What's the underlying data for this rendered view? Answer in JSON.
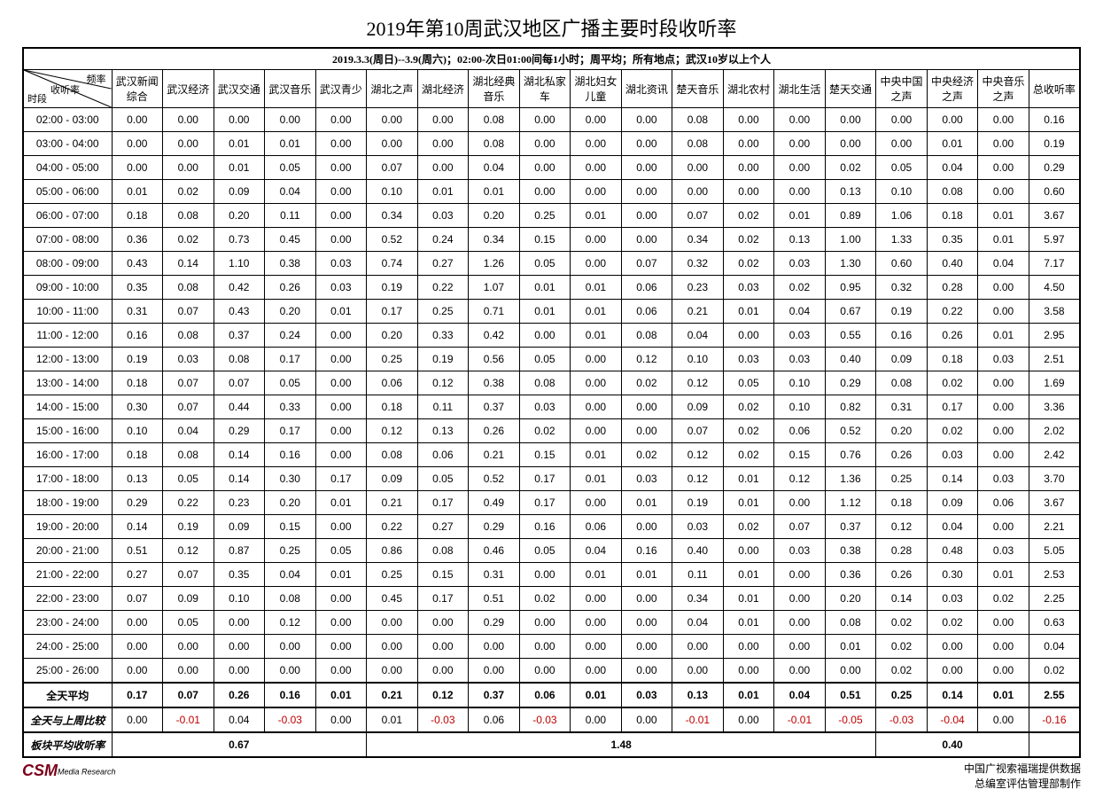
{
  "title": "2019年第10周武汉地区广播主要时段收听率",
  "subtitle": "2019.3.3(周日)--3.9(周六)；02:00-次日01:00间每1小时；周平均；所有地点；武汉10岁以上个人",
  "diag": {
    "top": "频率",
    "mid": "收听率",
    "bot": "时段"
  },
  "columns": [
    "武汉新闻综合",
    "武汉经济",
    "武汉交通",
    "武汉音乐",
    "武汉青少",
    "湖北之声",
    "湖北经济",
    "湖北经典音乐",
    "湖北私家车",
    "湖北妇女儿童",
    "湖北资讯",
    "楚天音乐",
    "湖北农村",
    "湖北生活",
    "楚天交通",
    "中央中国之声",
    "中央经济之声",
    "中央音乐之声",
    "总收听率"
  ],
  "rows": [
    {
      "t": "02:00 - 03:00",
      "v": [
        "0.00",
        "0.00",
        "0.00",
        "0.00",
        "0.00",
        "0.00",
        "0.00",
        "0.08",
        "0.00",
        "0.00",
        "0.00",
        "0.08",
        "0.00",
        "0.00",
        "0.00",
        "0.00",
        "0.00",
        "0.00",
        "0.16"
      ]
    },
    {
      "t": "03:00 - 04:00",
      "v": [
        "0.00",
        "0.00",
        "0.01",
        "0.01",
        "0.00",
        "0.00",
        "0.00",
        "0.08",
        "0.00",
        "0.00",
        "0.00",
        "0.08",
        "0.00",
        "0.00",
        "0.00",
        "0.00",
        "0.01",
        "0.00",
        "0.19"
      ]
    },
    {
      "t": "04:00 - 05:00",
      "v": [
        "0.00",
        "0.00",
        "0.01",
        "0.05",
        "0.00",
        "0.07",
        "0.00",
        "0.04",
        "0.00",
        "0.00",
        "0.00",
        "0.00",
        "0.00",
        "0.00",
        "0.02",
        "0.05",
        "0.04",
        "0.00",
        "0.29"
      ]
    },
    {
      "t": "05:00 - 06:00",
      "v": [
        "0.01",
        "0.02",
        "0.09",
        "0.04",
        "0.00",
        "0.10",
        "0.01",
        "0.01",
        "0.00",
        "0.00",
        "0.00",
        "0.00",
        "0.00",
        "0.00",
        "0.13",
        "0.10",
        "0.08",
        "0.00",
        "0.60"
      ]
    },
    {
      "t": "06:00 - 07:00",
      "v": [
        "0.18",
        "0.08",
        "0.20",
        "0.11",
        "0.00",
        "0.34",
        "0.03",
        "0.20",
        "0.25",
        "0.01",
        "0.00",
        "0.07",
        "0.02",
        "0.01",
        "0.89",
        "1.06",
        "0.18",
        "0.01",
        "3.67"
      ]
    },
    {
      "t": "07:00 - 08:00",
      "v": [
        "0.36",
        "0.02",
        "0.73",
        "0.45",
        "0.00",
        "0.52",
        "0.24",
        "0.34",
        "0.15",
        "0.00",
        "0.00",
        "0.34",
        "0.02",
        "0.13",
        "1.00",
        "1.33",
        "0.35",
        "0.01",
        "5.97"
      ]
    },
    {
      "t": "08:00 - 09:00",
      "v": [
        "0.43",
        "0.14",
        "1.10",
        "0.38",
        "0.03",
        "0.74",
        "0.27",
        "1.26",
        "0.05",
        "0.00",
        "0.07",
        "0.32",
        "0.02",
        "0.03",
        "1.30",
        "0.60",
        "0.40",
        "0.04",
        "7.17"
      ]
    },
    {
      "t": "09:00 - 10:00",
      "v": [
        "0.35",
        "0.08",
        "0.42",
        "0.26",
        "0.03",
        "0.19",
        "0.22",
        "1.07",
        "0.01",
        "0.01",
        "0.06",
        "0.23",
        "0.03",
        "0.02",
        "0.95",
        "0.32",
        "0.28",
        "0.00",
        "4.50"
      ]
    },
    {
      "t": "10:00 - 11:00",
      "v": [
        "0.31",
        "0.07",
        "0.43",
        "0.20",
        "0.01",
        "0.17",
        "0.25",
        "0.71",
        "0.01",
        "0.01",
        "0.06",
        "0.21",
        "0.01",
        "0.04",
        "0.67",
        "0.19",
        "0.22",
        "0.00",
        "3.58"
      ]
    },
    {
      "t": "11:00 - 12:00",
      "v": [
        "0.16",
        "0.08",
        "0.37",
        "0.24",
        "0.00",
        "0.20",
        "0.33",
        "0.42",
        "0.00",
        "0.01",
        "0.08",
        "0.04",
        "0.00",
        "0.03",
        "0.55",
        "0.16",
        "0.26",
        "0.01",
        "2.95"
      ]
    },
    {
      "t": "12:00 - 13:00",
      "v": [
        "0.19",
        "0.03",
        "0.08",
        "0.17",
        "0.00",
        "0.25",
        "0.19",
        "0.56",
        "0.05",
        "0.00",
        "0.12",
        "0.10",
        "0.03",
        "0.03",
        "0.40",
        "0.09",
        "0.18",
        "0.03",
        "2.51"
      ]
    },
    {
      "t": "13:00 - 14:00",
      "v": [
        "0.18",
        "0.07",
        "0.07",
        "0.05",
        "0.00",
        "0.06",
        "0.12",
        "0.38",
        "0.08",
        "0.00",
        "0.02",
        "0.12",
        "0.05",
        "0.10",
        "0.29",
        "0.08",
        "0.02",
        "0.00",
        "1.69"
      ]
    },
    {
      "t": "14:00 - 15:00",
      "v": [
        "0.30",
        "0.07",
        "0.44",
        "0.33",
        "0.00",
        "0.18",
        "0.11",
        "0.37",
        "0.03",
        "0.00",
        "0.00",
        "0.09",
        "0.02",
        "0.10",
        "0.82",
        "0.31",
        "0.17",
        "0.00",
        "3.36"
      ]
    },
    {
      "t": "15:00 - 16:00",
      "v": [
        "0.10",
        "0.04",
        "0.29",
        "0.17",
        "0.00",
        "0.12",
        "0.13",
        "0.26",
        "0.02",
        "0.00",
        "0.00",
        "0.07",
        "0.02",
        "0.06",
        "0.52",
        "0.20",
        "0.02",
        "0.00",
        "2.02"
      ]
    },
    {
      "t": "16:00 - 17:00",
      "v": [
        "0.18",
        "0.08",
        "0.14",
        "0.16",
        "0.00",
        "0.08",
        "0.06",
        "0.21",
        "0.15",
        "0.01",
        "0.02",
        "0.12",
        "0.02",
        "0.15",
        "0.76",
        "0.26",
        "0.03",
        "0.00",
        "2.42"
      ]
    },
    {
      "t": "17:00 - 18:00",
      "v": [
        "0.13",
        "0.05",
        "0.14",
        "0.30",
        "0.17",
        "0.09",
        "0.05",
        "0.52",
        "0.17",
        "0.01",
        "0.03",
        "0.12",
        "0.01",
        "0.12",
        "1.36",
        "0.25",
        "0.14",
        "0.03",
        "3.70"
      ]
    },
    {
      "t": "18:00 - 19:00",
      "v": [
        "0.29",
        "0.22",
        "0.23",
        "0.20",
        "0.01",
        "0.21",
        "0.17",
        "0.49",
        "0.17",
        "0.00",
        "0.01",
        "0.19",
        "0.01",
        "0.00",
        "1.12",
        "0.18",
        "0.09",
        "0.06",
        "3.67"
      ]
    },
    {
      "t": "19:00 - 20:00",
      "v": [
        "0.14",
        "0.19",
        "0.09",
        "0.15",
        "0.00",
        "0.22",
        "0.27",
        "0.29",
        "0.16",
        "0.06",
        "0.00",
        "0.03",
        "0.02",
        "0.07",
        "0.37",
        "0.12",
        "0.04",
        "0.00",
        "2.21"
      ]
    },
    {
      "t": "20:00 - 21:00",
      "v": [
        "0.51",
        "0.12",
        "0.87",
        "0.25",
        "0.05",
        "0.86",
        "0.08",
        "0.46",
        "0.05",
        "0.04",
        "0.16",
        "0.40",
        "0.00",
        "0.03",
        "0.38",
        "0.28",
        "0.48",
        "0.03",
        "5.05"
      ]
    },
    {
      "t": "21:00 - 22:00",
      "v": [
        "0.27",
        "0.07",
        "0.35",
        "0.04",
        "0.01",
        "0.25",
        "0.15",
        "0.31",
        "0.00",
        "0.01",
        "0.01",
        "0.11",
        "0.01",
        "0.00",
        "0.36",
        "0.26",
        "0.30",
        "0.01",
        "2.53"
      ]
    },
    {
      "t": "22:00 - 23:00",
      "v": [
        "0.07",
        "0.09",
        "0.10",
        "0.08",
        "0.00",
        "0.45",
        "0.17",
        "0.51",
        "0.02",
        "0.00",
        "0.00",
        "0.34",
        "0.01",
        "0.00",
        "0.20",
        "0.14",
        "0.03",
        "0.02",
        "2.25"
      ]
    },
    {
      "t": "23:00 - 24:00",
      "v": [
        "0.00",
        "0.05",
        "0.00",
        "0.12",
        "0.00",
        "0.00",
        "0.00",
        "0.29",
        "0.00",
        "0.00",
        "0.00",
        "0.04",
        "0.01",
        "0.00",
        "0.08",
        "0.02",
        "0.02",
        "0.00",
        "0.63"
      ]
    },
    {
      "t": "24:00 - 25:00",
      "v": [
        "0.00",
        "0.00",
        "0.00",
        "0.00",
        "0.00",
        "0.00",
        "0.00",
        "0.00",
        "0.00",
        "0.00",
        "0.00",
        "0.00",
        "0.00",
        "0.00",
        "0.01",
        "0.02",
        "0.00",
        "0.00",
        "0.04"
      ]
    },
    {
      "t": "25:00 - 26:00",
      "v": [
        "0.00",
        "0.00",
        "0.00",
        "0.00",
        "0.00",
        "0.00",
        "0.00",
        "0.00",
        "0.00",
        "0.00",
        "0.00",
        "0.00",
        "0.00",
        "0.00",
        "0.00",
        "0.02",
        "0.00",
        "0.00",
        "0.02"
      ]
    }
  ],
  "avg": {
    "label": "全天平均",
    "v": [
      "0.17",
      "0.07",
      "0.26",
      "0.16",
      "0.01",
      "0.21",
      "0.12",
      "0.37",
      "0.06",
      "0.01",
      "0.03",
      "0.13",
      "0.01",
      "0.04",
      "0.51",
      "0.25",
      "0.14",
      "0.01",
      "2.55"
    ]
  },
  "diff": {
    "label": "全天与上周比较",
    "v": [
      "0.00",
      "-0.01",
      "0.04",
      "-0.03",
      "0.00",
      "0.01",
      "-0.03",
      "0.06",
      "-0.03",
      "0.00",
      "0.00",
      "-0.01",
      "0.00",
      "-0.01",
      "-0.05",
      "-0.03",
      "-0.04",
      "0.00",
      "-0.16"
    ]
  },
  "block": {
    "label": "板块平均收听率",
    "groups": [
      {
        "span": 5,
        "val": "0.67"
      },
      {
        "span": 10,
        "val": "1.48"
      },
      {
        "span": 3,
        "val": "0.40"
      },
      {
        "span": 1,
        "val": ""
      }
    ]
  },
  "footer": {
    "logo_main": "CSM",
    "logo_sub": "Media Research",
    "credit1": "中国广视索福瑞提供数据",
    "credit2": "总编室评估管理部制作"
  },
  "colors": {
    "neg": "#c00000",
    "logo": "#7a0019"
  }
}
